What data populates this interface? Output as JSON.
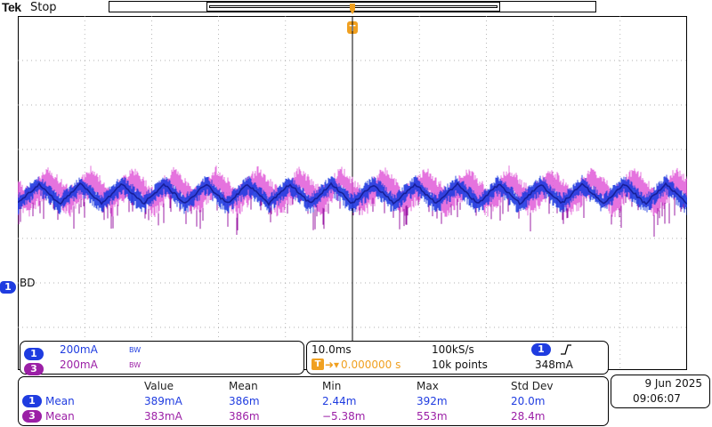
{
  "header": {
    "brand": "Tek",
    "run_state": "Stop"
  },
  "trigger": {
    "marker_label": "T"
  },
  "channel_marker": {
    "number": "1",
    "label": "BD"
  },
  "channels": [
    {
      "number": "1",
      "scale": "200mA",
      "bw": "BW",
      "color": "#1f3ce0"
    },
    {
      "number": "3",
      "scale": "200mA",
      "bw": "BW",
      "color": "#9b1fa6"
    }
  ],
  "timebase": {
    "time_per_div": "10.0ms",
    "sample_rate": "100kS/s",
    "trigger_source": "1",
    "trigger_slope": "rising-edge-icon",
    "trigger_position": "0.000000 s",
    "record_length": "10k points",
    "trigger_level": "348mA"
  },
  "measurements": {
    "headers": [
      "Value",
      "Mean",
      "Min",
      "Max",
      "Std Dev"
    ],
    "rows": [
      {
        "channel": "1",
        "name": "Mean",
        "cells": [
          "389mA",
          "386m",
          "2.44m",
          "392m",
          "20.0m"
        ]
      },
      {
        "channel": "3",
        "name": "Mean",
        "cells": [
          "383mA",
          "386m",
          "−5.38m",
          "553m",
          "28.4m"
        ]
      }
    ]
  },
  "datetime": {
    "date": "9 Jun  2025",
    "time": "09:06:07"
  },
  "colors": {
    "ch1": "#1f3ce0",
    "ch3": "#9b1fa6",
    "ch3_light": "#e05ad8",
    "trigger": "#f0a020",
    "dark_blue": "#0b0f7a"
  }
}
